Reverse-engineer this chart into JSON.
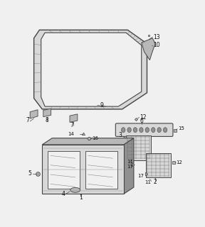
{
  "bg_color": "#f0f0f0",
  "line_color": "#444444",
  "text_color": "#111111",
  "fill_light": "#d8d8d8",
  "fill_mid": "#b8b8b8",
  "fill_dark": "#909090"
}
